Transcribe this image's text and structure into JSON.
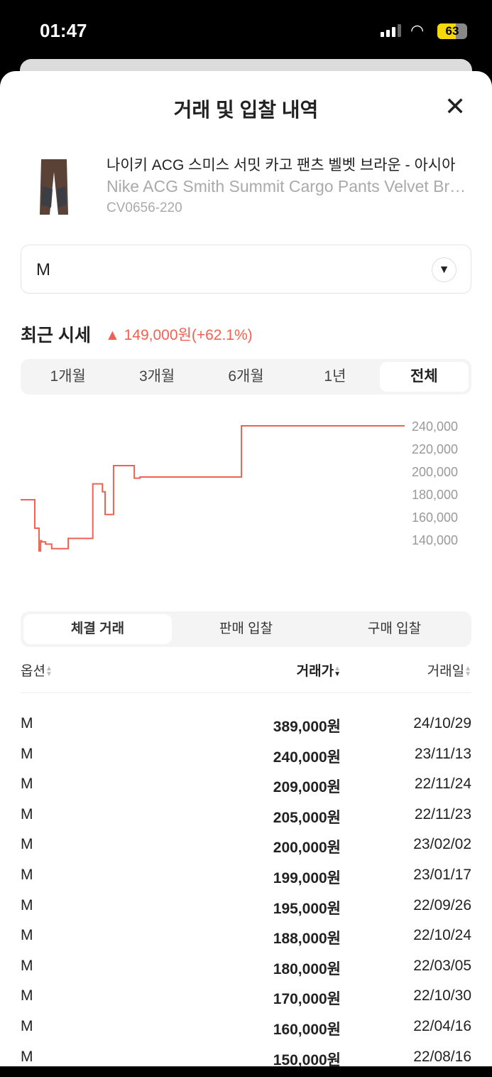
{
  "status_bar": {
    "time": "01:47",
    "battery": "63",
    "battery_level_percent": 63
  },
  "header": {
    "title": "거래 및 입찰 내역",
    "close_icon": "close-icon"
  },
  "product": {
    "name_ko": "나이키 ACG 스미스 서밋 카고 팬츠 벨벳 브라운 - 아시아",
    "name_en": "Nike ACG Smith Summit Cargo Pants Velvet Brown",
    "code": "CV0656-220"
  },
  "size_select": {
    "value": "M",
    "icon": "dropdown-triangle-icon"
  },
  "recent_price": {
    "label": "최근 시세",
    "change": "149,000원(+62.1%)",
    "color": "#ef6253"
  },
  "periods": [
    {
      "label": "1개월"
    },
    {
      "label": "3개월"
    },
    {
      "label": "6개월"
    },
    {
      "label": "1년"
    },
    {
      "label": "전체",
      "active": true
    }
  ],
  "chart_data": {
    "type": "line",
    "step": true,
    "color": "#ef6253",
    "grid": false,
    "yticks": [
      "240,000",
      "220,000",
      "200,000",
      "180,000",
      "160,000",
      "140,000"
    ],
    "ytick_values": [
      240000,
      220000,
      200000,
      180000,
      160000,
      140000
    ],
    "ylim": [
      130000,
      240000
    ],
    "points": [
      {
        "t": 0.0,
        "v": 175000
      },
      {
        "t": 0.037,
        "v": 150000
      },
      {
        "t": 0.048,
        "v": 130000
      },
      {
        "t": 0.052,
        "v": 139000
      },
      {
        "t": 0.055,
        "v": 138000
      },
      {
        "t": 0.065,
        "v": 136000
      },
      {
        "t": 0.081,
        "v": 132000
      },
      {
        "t": 0.124,
        "v": 141000
      },
      {
        "t": 0.188,
        "v": 189000
      },
      {
        "t": 0.213,
        "v": 182000
      },
      {
        "t": 0.22,
        "v": 162000
      },
      {
        "t": 0.242,
        "v": 205000
      },
      {
        "t": 0.296,
        "v": 194000
      },
      {
        "t": 0.311,
        "v": 195000
      },
      {
        "t": 0.575,
        "v": 240000
      },
      {
        "t": 1.0,
        "v": 240000
      }
    ]
  },
  "tabs": [
    {
      "label": "체결 거래",
      "active": true
    },
    {
      "label": "판매 입찰"
    },
    {
      "label": "구매 입찰"
    }
  ],
  "table": {
    "headers": {
      "option": "옵션",
      "price": "거래가",
      "date": "거래일"
    },
    "rows": [
      {
        "option": "M",
        "price": "389,000원",
        "date": "24/10/29"
      },
      {
        "option": "M",
        "price": "240,000원",
        "date": "23/11/13"
      },
      {
        "option": "M",
        "price": "209,000원",
        "date": "22/11/24"
      },
      {
        "option": "M",
        "price": "205,000원",
        "date": "22/11/23"
      },
      {
        "option": "M",
        "price": "200,000원",
        "date": "23/02/02"
      },
      {
        "option": "M",
        "price": "199,000원",
        "date": "23/01/17"
      },
      {
        "option": "M",
        "price": "195,000원",
        "date": "22/09/26"
      },
      {
        "option": "M",
        "price": "188,000원",
        "date": "22/10/24"
      },
      {
        "option": "M",
        "price": "180,000원",
        "date": "22/03/05"
      },
      {
        "option": "M",
        "price": "170,000원",
        "date": "22/10/30"
      },
      {
        "option": "M",
        "price": "160,000원",
        "date": "22/04/16"
      },
      {
        "option": "M",
        "price": "150,000원",
        "date": "22/08/16"
      }
    ]
  }
}
